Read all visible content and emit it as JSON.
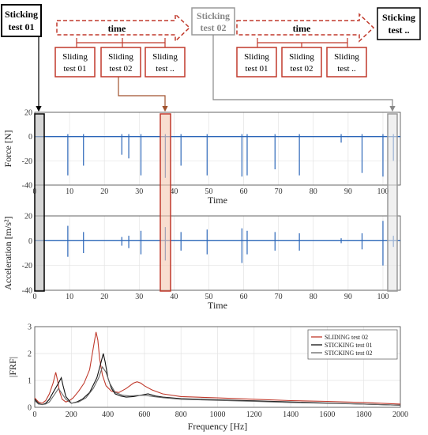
{
  "top": {
    "sticking_boxes": [
      "Sticking test 01",
      "Sticking test 02",
      "Sticking test .."
    ],
    "time_label": "time",
    "sliding_group_1": [
      "Sliding test 01",
      "Sliding test 02",
      "Sliding test .."
    ],
    "sliding_group_2": [
      "Sliding test 01",
      "Sliding test 02",
      "Sliding test .."
    ]
  },
  "colors": {
    "signal": "#2b66b8",
    "frf_sliding": "#c0392b",
    "frf_sticking1": "#111111",
    "frf_sticking2": "#666666",
    "box_red": "#c0392b",
    "box_grey": "#999999"
  },
  "chart_data": [
    {
      "type": "line",
      "name": "force",
      "xlabel": "Time",
      "ylabel": "Force [N]",
      "xlim": [
        0,
        105
      ],
      "ylim": [
        -40,
        20
      ],
      "xticks": [
        0,
        10,
        20,
        30,
        40,
        50,
        60,
        70,
        80,
        90,
        100
      ],
      "yticks": [
        -40,
        -20,
        0,
        20
      ],
      "spikes": [
        {
          "x": 9.5,
          "y": -32
        },
        {
          "x": 14,
          "y": -24
        },
        {
          "x": 25,
          "y": -15
        },
        {
          "x": 27,
          "y": -18
        },
        {
          "x": 30.5,
          "y": -32
        },
        {
          "x": 37.5,
          "y": -34
        },
        {
          "x": 42,
          "y": -24
        },
        {
          "x": 49.5,
          "y": -32
        },
        {
          "x": 59.5,
          "y": -33
        },
        {
          "x": 61,
          "y": -32
        },
        {
          "x": 69,
          "y": -27
        },
        {
          "x": 76,
          "y": -32
        },
        {
          "x": 88,
          "y": -5
        },
        {
          "x": 94,
          "y": -30
        },
        {
          "x": 100,
          "y": -33
        },
        {
          "x": 103,
          "y": -20
        }
      ]
    },
    {
      "type": "line",
      "name": "acceleration",
      "xlabel": "Time",
      "ylabel": "Acceleration [m/s²]",
      "xlim": [
        0,
        105
      ],
      "ylim": [
        -40,
        20
      ],
      "xticks": [
        0,
        10,
        20,
        30,
        40,
        50,
        60,
        70,
        80,
        90,
        100
      ],
      "yticks": [
        -40,
        -20,
        0,
        20
      ],
      "spikes": [
        {
          "x": 9.5,
          "y": 12,
          "y2": -13
        },
        {
          "x": 14,
          "y": 7,
          "y2": -10
        },
        {
          "x": 25,
          "y": 3,
          "y2": -4
        },
        {
          "x": 27,
          "y": 4,
          "y2": -6
        },
        {
          "x": 30.5,
          "y": 8,
          "y2": -11
        },
        {
          "x": 37.5,
          "y": 11,
          "y2": -16
        },
        {
          "x": 42,
          "y": 7,
          "y2": -8
        },
        {
          "x": 49.5,
          "y": 9,
          "y2": -11
        },
        {
          "x": 59.5,
          "y": 10,
          "y2": -18
        },
        {
          "x": 61,
          "y": 8,
          "y2": -11
        },
        {
          "x": 69,
          "y": 7,
          "y2": -8
        },
        {
          "x": 76,
          "y": 6,
          "y2": -8
        },
        {
          "x": 88,
          "y": 2,
          "y2": -2
        },
        {
          "x": 94,
          "y": 6,
          "y2": -7
        },
        {
          "x": 100,
          "y": 16,
          "y2": -20
        },
        {
          "x": 103,
          "y": 4,
          "y2": -5
        }
      ]
    },
    {
      "type": "line",
      "name": "frf",
      "xlabel": "Frequency [Hz]",
      "ylabel": "|FRF|",
      "xlim": [
        0,
        2000
      ],
      "ylim": [
        0,
        3
      ],
      "xticks": [
        0,
        200,
        400,
        600,
        800,
        1000,
        1200,
        1400,
        1600,
        1800,
        2000
      ],
      "yticks": [
        0,
        1,
        2,
        3
      ],
      "legend_position": "top-right",
      "series": [
        {
          "name": "SLIDING test 02",
          "x": [
            0,
            20,
            40,
            60,
            80,
            100,
            115,
            125,
            135,
            150,
            170,
            190,
            210,
            240,
            270,
            300,
            320,
            335,
            345,
            355,
            370,
            390,
            420,
            460,
            500,
            540,
            560,
            580,
            600,
            640,
            700,
            800,
            1000,
            1200,
            1400,
            1600,
            1800,
            2000
          ],
          "y": [
            0.35,
            0.2,
            0.15,
            0.25,
            0.5,
            0.9,
            1.3,
            1.0,
            0.6,
            0.3,
            0.2,
            0.25,
            0.35,
            0.6,
            0.9,
            1.4,
            2.2,
            2.8,
            2.5,
            1.8,
            1.2,
            0.8,
            0.6,
            0.55,
            0.7,
            0.9,
            0.95,
            0.9,
            0.8,
            0.65,
            0.5,
            0.4,
            0.35,
            0.3,
            0.25,
            0.22,
            0.18,
            0.12
          ]
        },
        {
          "name": "STICKING test 01",
          "x": [
            0,
            20,
            40,
            60,
            80,
            100,
            130,
            145,
            155,
            170,
            200,
            230,
            260,
            300,
            340,
            360,
            375,
            385,
            400,
            420,
            440,
            470,
            500,
            540,
            580,
            620,
            660,
            700,
            800,
            1000,
            1200,
            1400,
            1600,
            1800,
            2000
          ],
          "y": [
            0.3,
            0.15,
            0.1,
            0.15,
            0.3,
            0.55,
            0.9,
            1.1,
            0.8,
            0.4,
            0.15,
            0.2,
            0.3,
            0.55,
            1.1,
            1.6,
            2.0,
            1.7,
            1.1,
            0.7,
            0.5,
            0.42,
            0.38,
            0.4,
            0.45,
            0.5,
            0.42,
            0.38,
            0.32,
            0.28,
            0.24,
            0.2,
            0.16,
            0.12,
            0.08
          ]
        },
        {
          "name": "STICKING test 02",
          "x": [
            0,
            20,
            40,
            60,
            80,
            100,
            130,
            150,
            170,
            200,
            240,
            280,
            320,
            350,
            370,
            390,
            410,
            440,
            480,
            520,
            560,
            600,
            650,
            700,
            800,
            1000,
            1200,
            1400,
            1600,
            1800,
            2000
          ],
          "y": [
            0.25,
            0.12,
            0.1,
            0.12,
            0.2,
            0.4,
            0.7,
            0.5,
            0.3,
            0.15,
            0.2,
            0.35,
            0.7,
            1.1,
            1.5,
            1.3,
            0.9,
            0.55,
            0.45,
            0.42,
            0.44,
            0.45,
            0.4,
            0.36,
            0.3,
            0.26,
            0.22,
            0.18,
            0.15,
            0.12,
            0.08
          ]
        }
      ]
    }
  ]
}
